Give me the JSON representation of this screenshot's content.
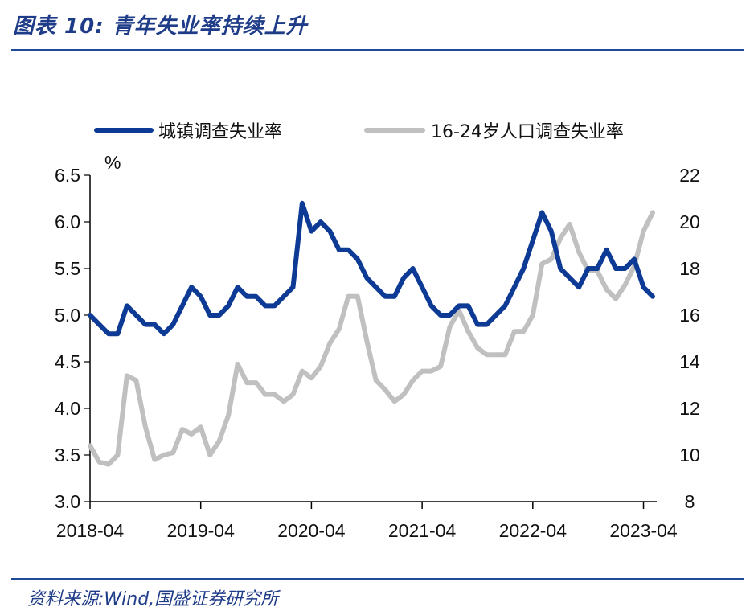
{
  "header": {
    "title": "图表 10:  青年失业率持续上升"
  },
  "footer": {
    "source": "资料来源:Wind,国盛证券研究所"
  },
  "colors": {
    "series_urban": "#0d3a94",
    "series_youth": "#c0c0c0",
    "rule": "#1f4a9a",
    "title": "#1f3c88"
  },
  "chart_data": {
    "type": "line",
    "title": "青年失业率持续上升",
    "ylabel_left": "%",
    "ylim_left": [
      3.0,
      6.5
    ],
    "yticks_left": [
      3.0,
      3.5,
      4.0,
      4.5,
      5.0,
      5.5,
      6.0,
      6.5
    ],
    "ylim_right": [
      8,
      22
    ],
    "yticks_right": [
      8,
      10,
      12,
      14,
      16,
      18,
      20,
      22
    ],
    "x_tick_labels": [
      "2018-04",
      "2019-04",
      "2020-04",
      "2021-04",
      "2022-04",
      "2023-04"
    ],
    "x_start": "2018-04",
    "x_end": "2023-04",
    "legend_position": "top",
    "series": [
      {
        "name": "城镇调查失业率",
        "axis": "left",
        "values": [
          5.0,
          4.9,
          4.8,
          4.8,
          5.1,
          5.0,
          4.9,
          4.9,
          4.8,
          4.9,
          5.1,
          5.3,
          5.2,
          5.0,
          5.0,
          5.1,
          5.3,
          5.2,
          5.2,
          5.1,
          5.1,
          5.2,
          5.3,
          6.2,
          5.9,
          6.0,
          5.9,
          5.7,
          5.7,
          5.6,
          5.4,
          5.3,
          5.2,
          5.2,
          5.4,
          5.5,
          5.3,
          5.1,
          5.0,
          5.0,
          5.1,
          5.1,
          4.9,
          4.9,
          5.0,
          5.1,
          5.3,
          5.5,
          5.8,
          6.1,
          5.9,
          5.5,
          5.4,
          5.3,
          5.5,
          5.5,
          5.7,
          5.5,
          5.5,
          5.6,
          5.3,
          5.2
        ]
      },
      {
        "name": "16-24岁人口调查失业率",
        "axis": "right",
        "values": [
          10.4,
          9.7,
          9.6,
          10.0,
          13.4,
          13.2,
          11.2,
          9.8,
          10.0,
          10.1,
          11.1,
          10.9,
          11.2,
          10.0,
          10.6,
          11.7,
          13.9,
          13.1,
          13.1,
          12.6,
          12.6,
          12.3,
          12.6,
          13.6,
          13.3,
          13.8,
          14.8,
          15.4,
          16.8,
          16.8,
          14.9,
          13.2,
          12.8,
          12.3,
          12.6,
          13.2,
          13.6,
          13.6,
          13.8,
          15.5,
          16.2,
          15.3,
          14.6,
          14.3,
          14.3,
          14.3,
          15.3,
          15.3,
          16.0,
          18.2,
          18.4,
          19.3,
          19.9,
          18.7,
          17.9,
          17.9,
          17.1,
          16.7,
          17.3,
          18.1,
          19.6,
          20.4
        ]
      }
    ]
  }
}
